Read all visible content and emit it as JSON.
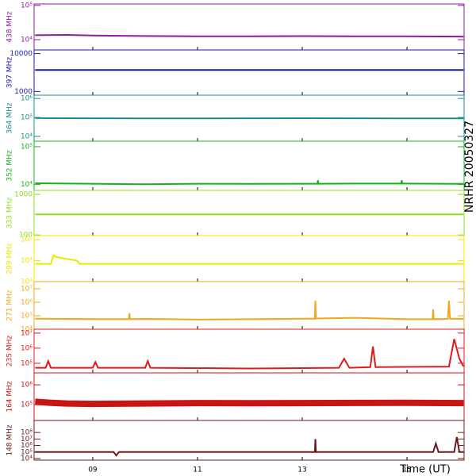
{
  "title": "NRHR 20050327",
  "xlabel": "Time (UT)",
  "xlim": [
    7.88,
    16.09
  ],
  "xticks": [
    {
      "value": 9,
      "label": "09"
    },
    {
      "value": 11,
      "label": "11"
    },
    {
      "value": 13,
      "label": "13"
    },
    {
      "value": 15,
      "label": "15"
    }
  ],
  "chart_data": [
    {
      "type": "line",
      "ylabel": "438 MHz",
      "log_y": true,
      "color": "#8b1a9e",
      "ylim": [
        5000,
        110000
      ],
      "yticks": [
        {
          "value": 100000,
          "label": "10⁵"
        },
        {
          "value": 10000,
          "label": "10⁴"
        }
      ],
      "x": [
        7.9,
        8.5,
        9,
        10,
        11,
        12,
        13,
        14,
        15,
        16,
        16.08
      ],
      "values": [
        13500,
        13800,
        13200,
        12800,
        12600,
        12500,
        12700,
        12600,
        12500,
        12300,
        12200
      ]
    },
    {
      "type": "line",
      "ylabel": "397 MHz",
      "log_y": true,
      "color": "#1a1aa8",
      "ylim": [
        800,
        12500
      ],
      "yticks": [
        10000,
        1000
      ],
      "x": [
        7.9,
        16.08
      ],
      "values": [
        3700,
        3700
      ]
    },
    {
      "type": "line",
      "ylabel": "364 MHz",
      "log_y": true,
      "color": "#1a8c8c",
      "ylim": [
        5500,
        1500000
      ],
      "yticks": [
        {
          "value": 1000000,
          "label": "10⁶"
        },
        {
          "value": 100000,
          "label": "10⁵"
        },
        {
          "value": 10000,
          "label": "10⁴"
        }
      ],
      "x": [
        7.9,
        9,
        10,
        11,
        12,
        13,
        14,
        15,
        16.08
      ],
      "values": [
        92000,
        90000,
        88000,
        89000,
        90000,
        91000,
        90000,
        89000,
        88000
      ]
    },
    {
      "type": "line",
      "ylabel": "352 MHz",
      "log_y": true,
      "color": "#1ab01a",
      "ylim": [
        7000,
        140000
      ],
      "yticks": [
        {
          "value": 100000,
          "label": "10⁵"
        },
        {
          "value": 10000,
          "label": "10⁴"
        }
      ],
      "x": [
        7.9,
        9,
        10,
        11,
        12,
        13,
        13.29,
        13.3,
        13.31,
        14,
        14.89,
        14.9,
        14.91,
        16,
        16.08
      ],
      "values": [
        10800,
        10500,
        10200,
        10500,
        10400,
        10500,
        10500,
        13000,
        10500,
        10600,
        10600,
        13000,
        10600,
        10400,
        10500
      ]
    },
    {
      "type": "line",
      "ylabel": "333 MHz",
      "log_y": true,
      "color": "#8ce01a",
      "ylim": [
        96,
        1250
      ],
      "yticks": [
        1000,
        100
      ],
      "x": [
        7.9,
        16.08
      ],
      "values": [
        320,
        320
      ]
    },
    {
      "type": "line",
      "ylabel": "299 MHz",
      "log_y": true,
      "color": "#f0e600",
      "ylim": [
        1000,
        155000
      ],
      "yticks": [
        {
          "value": 100000,
          "label": "10⁵"
        },
        {
          "value": 10000,
          "label": "10⁴"
        },
        {
          "value": 1000,
          "label": "10³"
        }
      ],
      "x": [
        7.9,
        8.2,
        8.25,
        8.3,
        8.5,
        8.7,
        8.75,
        16.08
      ],
      "values": [
        7000,
        7000,
        18000,
        15000,
        12000,
        10000,
        7000,
        7000
      ]
    },
    {
      "type": "line",
      "ylabel": "271 MHz",
      "log_y": true,
      "color": "#f0a81a",
      "ylim": [
        10000,
        34000000
      ],
      "yticks": [
        {
          "value": 10000000,
          "label": "10⁷"
        },
        {
          "value": 1000000,
          "label": "10⁶"
        },
        {
          "value": 100000,
          "label": "10⁵"
        },
        {
          "value": 10000,
          "label": "10⁴"
        }
      ],
      "x": [
        7.9,
        8.5,
        9,
        9.69,
        9.7,
        9.71,
        10,
        11,
        12,
        13,
        13.24,
        13.25,
        13.26,
        14,
        15,
        15.49,
        15.5,
        15.51,
        15.78,
        15.8,
        15.82,
        16.08
      ],
      "values": [
        60000,
        58000,
        57000,
        57000,
        150000,
        57000,
        58000,
        52000,
        55000,
        60000,
        60000,
        1300000,
        62000,
        70000,
        55000,
        56000,
        300000,
        56000,
        58000,
        1300000,
        60000,
        58000
      ]
    },
    {
      "type": "line",
      "ylabel": "235 MHz",
      "log_y": true,
      "color": "#e01a1a",
      "ylim": [
        23000,
        18000000
      ],
      "yticks": [
        {
          "value": 10000000,
          "label": "10⁷"
        },
        {
          "value": 1000000,
          "label": "10⁶"
        },
        {
          "value": 100000,
          "label": "10⁵"
        }
      ],
      "x": [
        7.9,
        8.1,
        8.15,
        8.2,
        9.0,
        9.05,
        9.1,
        10.0,
        10.05,
        10.1,
        12,
        13.7,
        13.8,
        13.9,
        14.3,
        14.35,
        14.4,
        15.8,
        15.9,
        16.0,
        16.08
      ],
      "values": [
        50000,
        50000,
        140000,
        50000,
        50000,
        120000,
        50000,
        50000,
        140000,
        50000,
        45000,
        50000,
        200000,
        50000,
        55000,
        1300000,
        55000,
        60000,
        4000000,
        200000,
        60000
      ]
    },
    {
      "type": "line",
      "ylabel": "164 MHz",
      "log_y": true,
      "color": "#c81414",
      "ylim": [
        16000,
        4000000
      ],
      "yticks": [
        {
          "value": 1000000,
          "label": "10⁶"
        },
        {
          "value": 100000,
          "label": "10⁵"
        }
      ],
      "x": [
        7.9,
        8.2,
        8.5,
        9,
        10,
        11,
        12,
        13,
        14,
        15,
        16.08
      ],
      "values": [
        140000,
        125000,
        115000,
        110000,
        115000,
        120000,
        118000,
        120000,
        122000,
        125000,
        120000
      ]
    },
    {
      "type": "line",
      "ylabel": "148 MHz",
      "log_y": true,
      "color": "#6b1a1a",
      "ylim": [
        5700,
        7000000000
      ],
      "yticks": [
        {
          "value": 100000000,
          "label": "10⁸"
        },
        {
          "value": 10000000,
          "label": "10⁷"
        },
        {
          "value": 1000000,
          "label": "10⁶"
        },
        {
          "value": 100000,
          "label": "10⁵"
        },
        {
          "value": 10000,
          "label": "10⁴"
        }
      ],
      "x": [
        7.9,
        9.4,
        9.45,
        9.5,
        13.24,
        13.25,
        13.26,
        15.5,
        15.55,
        15.6,
        15.9,
        15.95,
        16.0,
        16.08
      ],
      "values": [
        100000,
        100000,
        30000,
        100000,
        100000,
        10000000,
        100000,
        100000,
        2000000,
        100000,
        100000,
        20000000,
        100000,
        100000
      ]
    }
  ]
}
